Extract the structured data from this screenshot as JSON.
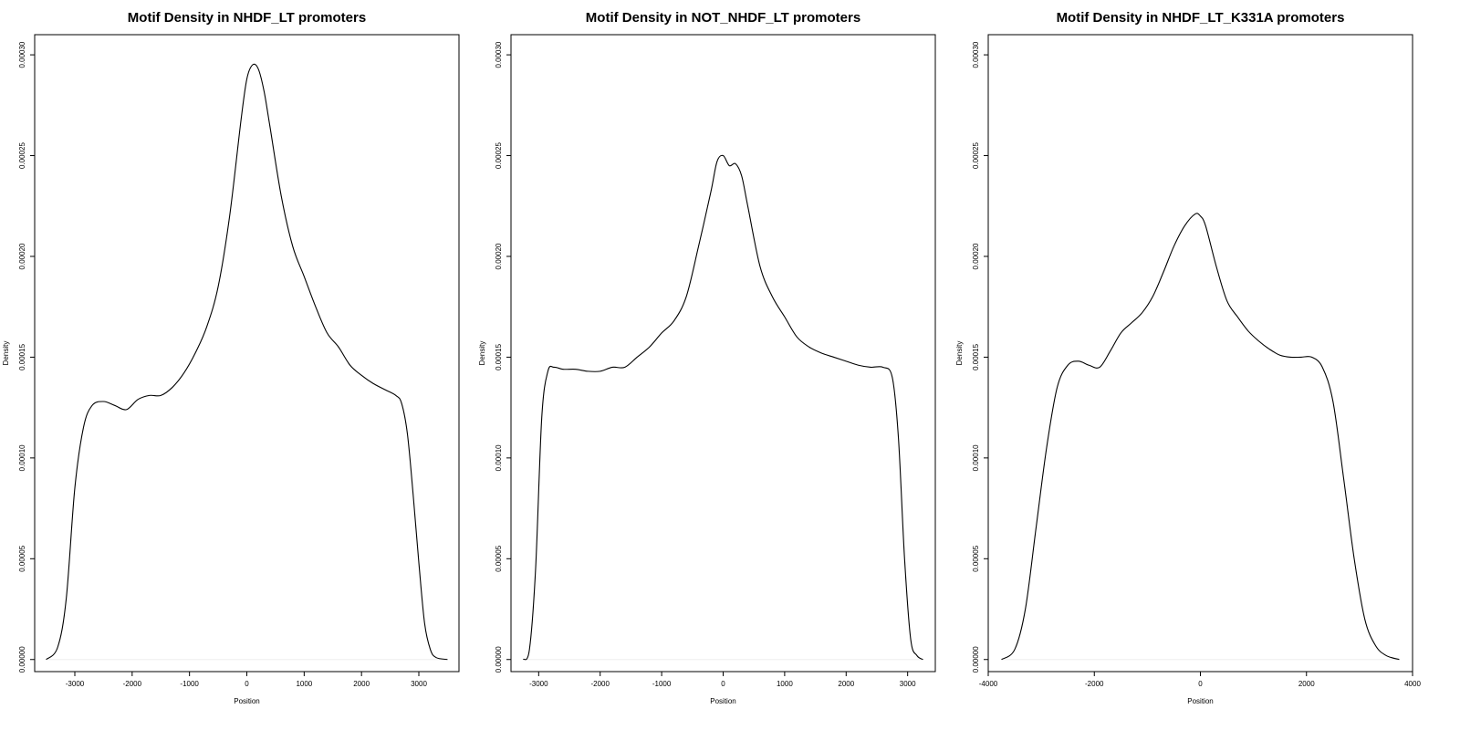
{
  "chart_data": [
    {
      "type": "line",
      "title": "Motif Density in NHDF_LT promoters",
      "xlabel": "Position",
      "ylabel": "Density",
      "xlim": [
        -3700,
        3700
      ],
      "ylim": [
        -6e-06,
        0.00031
      ],
      "xticks": [
        -3000,
        -2000,
        -1000,
        0,
        1000,
        2000,
        3000
      ],
      "xtick_labels": [
        "-3000",
        "-2000",
        "-1000",
        "0",
        "1000",
        "2000",
        "3000"
      ],
      "yticks": [
        0,
        5e-05,
        0.0001,
        0.00015,
        0.0002,
        0.00025,
        0.0003
      ],
      "ytick_labels": [
        "0.00000",
        "0.00005",
        "0.00010",
        "0.00015",
        "0.00020",
        "0.00025",
        "0.00030"
      ],
      "grid": false,
      "series": [
        {
          "x": [
            -3500,
            -3300,
            -3150,
            -3000,
            -2850,
            -2700,
            -2500,
            -2300,
            -2100,
            -1900,
            -1700,
            -1500,
            -1300,
            -1100,
            -900,
            -700,
            -500,
            -300,
            -100,
            0,
            100,
            200,
            300,
            400,
            600,
            800,
            1000,
            1200,
            1400,
            1600,
            1800,
            2000,
            2200,
            2400,
            2600,
            2700,
            2800,
            2900,
            3000,
            3100,
            3200,
            3300,
            3500
          ],
          "y": [
            0.0,
            6e-06,
            3e-05,
            8.5e-05,
            0.000115,
            0.000126,
            0.000128,
            0.000126,
            0.000124,
            0.000129,
            0.000131,
            0.000131,
            0.000135,
            0.000142,
            0.000152,
            0.000165,
            0.000185,
            0.00022,
            0.000268,
            0.000288,
            0.000295,
            0.000293,
            0.000282,
            0.000265,
            0.00023,
            0.000205,
            0.00019,
            0.000175,
            0.000162,
            0.000155,
            0.000146,
            0.000141,
            0.000137,
            0.000134,
            0.000131,
            0.000127,
            0.000112,
            8.2e-05,
            4.8e-05,
            1.8e-05,
            5e-06,
            1e-06,
            0.0
          ]
        }
      ]
    },
    {
      "type": "line",
      "title": "Motif Density in NOT_NHDF_LT promoters",
      "xlabel": "Position",
      "ylabel": "Density",
      "xlim": [
        -3450,
        3450
      ],
      "ylim": [
        -6e-06,
        0.00031
      ],
      "xticks": [
        -3000,
        -2000,
        -1000,
        0,
        1000,
        2000,
        3000
      ],
      "xtick_labels": [
        "-3000",
        "-2000",
        "-1000",
        "0",
        "1000",
        "2000",
        "3000"
      ],
      "yticks": [
        0,
        5e-05,
        0.0001,
        0.00015,
        0.0002,
        0.00025,
        0.0003
      ],
      "ytick_labels": [
        "0.00000",
        "0.00005",
        "0.00010",
        "0.00015",
        "0.00020",
        "0.00025",
        "0.00030"
      ],
      "grid": false,
      "series": [
        {
          "x": [
            -3250,
            -3150,
            -3050,
            -2950,
            -2850,
            -2750,
            -2600,
            -2400,
            -2200,
            -2000,
            -1800,
            -1600,
            -1400,
            -1200,
            -1000,
            -800,
            -600,
            -400,
            -200,
            -100,
            0,
            100,
            200,
            300,
            400,
            600,
            800,
            1000,
            1200,
            1400,
            1600,
            1800,
            2000,
            2200,
            2400,
            2600,
            2750,
            2850,
            2950,
            3050,
            3150,
            3250
          ],
          "y": [
            0.0,
            5e-06,
            4.5e-05,
            0.00012,
            0.000143,
            0.000145,
            0.000144,
            0.000144,
            0.000143,
            0.000143,
            0.000145,
            0.000145,
            0.00015,
            0.000155,
            0.000162,
            0.000168,
            0.00018,
            0.000205,
            0.000232,
            0.000247,
            0.00025,
            0.000245,
            0.000246,
            0.00024,
            0.000225,
            0.000195,
            0.00018,
            0.00017,
            0.00016,
            0.000155,
            0.000152,
            0.00015,
            0.000148,
            0.000146,
            0.000145,
            0.000145,
            0.00014,
            0.00011,
            5e-05,
            1e-05,
            2e-06,
            0.0
          ]
        }
      ]
    },
    {
      "type": "line",
      "title": "Motif Density in NHDF_LT_K331A promoters",
      "xlabel": "Position",
      "ylabel": "Density",
      "xlim": [
        -4000,
        4000
      ],
      "ylim": [
        -6e-06,
        0.00031
      ],
      "xticks": [
        -4000,
        -2000,
        0,
        2000,
        4000
      ],
      "xtick_labels": [
        "-4000",
        "-2000",
        "0",
        "2000",
        "4000"
      ],
      "yticks": [
        0,
        5e-05,
        0.0001,
        0.00015,
        0.0002,
        0.00025,
        0.0003
      ],
      "ytick_labels": [
        "0.00000",
        "0.00005",
        "0.00010",
        "0.00015",
        "0.00020",
        "0.00025",
        "0.00030"
      ],
      "grid": false,
      "series": [
        {
          "x": [
            -3750,
            -3500,
            -3300,
            -3100,
            -2900,
            -2700,
            -2500,
            -2300,
            -2100,
            -1900,
            -1700,
            -1500,
            -1300,
            -1100,
            -900,
            -700,
            -500,
            -300,
            -100,
            0,
            100,
            300,
            500,
            700,
            900,
            1100,
            1300,
            1500,
            1700,
            1900,
            2100,
            2300,
            2500,
            2700,
            2900,
            3100,
            3300,
            3500,
            3750
          ],
          "y": [
            0.0,
            5e-06,
            2.5e-05,
            6.5e-05,
            0.000105,
            0.000135,
            0.000146,
            0.000148,
            0.000146,
            0.000145,
            0.000153,
            0.000162,
            0.000167,
            0.000172,
            0.00018,
            0.000192,
            0.000205,
            0.000215,
            0.000221,
            0.00022,
            0.000215,
            0.000195,
            0.000178,
            0.00017,
            0.000163,
            0.000158,
            0.000154,
            0.000151,
            0.00015,
            0.00015,
            0.00015,
            0.000145,
            0.000128,
            9e-05,
            5e-05,
            2e-05,
            7e-06,
            2e-06,
            0.0
          ]
        }
      ]
    }
  ]
}
